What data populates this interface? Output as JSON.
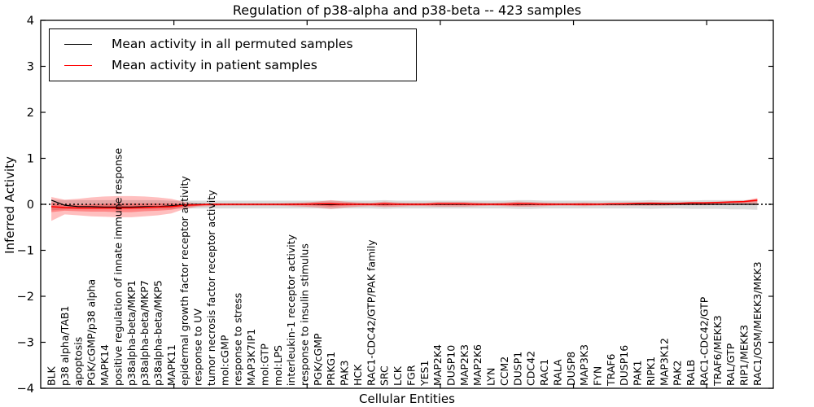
{
  "figure": {
    "title": "Regulation of p38-alpha and p38-beta -- 423 samples",
    "xlabel": "Cellular Entities",
    "ylabel": "Inferred Activity"
  },
  "legend": {
    "items": [
      {
        "label": "Mean activity in all permuted samples",
        "color": "#000000"
      },
      {
        "label": "Mean activity in patient samples",
        "color": "#ff0000"
      }
    ]
  },
  "chart_data": {
    "type": "line",
    "title": "Regulation of p38-alpha and p38-beta -- 423 samples",
    "xlabel": "Cellular Entities",
    "ylabel": "Inferred Activity",
    "ylim": [
      -4,
      4
    ],
    "xlim": [
      0,
      55
    ],
    "grid": false,
    "legend_position": "upper left",
    "y_ticks": [
      4,
      3,
      2,
      1,
      0,
      -1,
      -2,
      -3,
      -4
    ],
    "y_tick_labels": [
      "4",
      "3",
      "2",
      "1",
      "0",
      "−1",
      "−2",
      "−3",
      "−4"
    ],
    "x_major_ticks": [
      10,
      20,
      30,
      40,
      50
    ],
    "zero_line": {
      "style": "dotted",
      "color": "#000000",
      "y": 0
    },
    "categories": [
      "BLK",
      "p38 alpha/TAB1",
      "apoptosis",
      "PGK/cGMP/p38 alpha",
      "MAPK14",
      "positive regulation of innate immune response",
      "p38alpha-beta/MKP1",
      "p38alpha-beta/MKP7",
      "p38alpha-beta/MKP5",
      "MAPK11",
      "epidermal growth factor receptor activity",
      "response to UV",
      "tumor necrosis factor receptor activity",
      "mol:cGMP",
      "response to stress",
      "MAP3K7IP1",
      "mol:GTP",
      "mol:LPS",
      "interleukin-1 receptor activity",
      "response to insulin stimulus",
      "PGK/cGMP",
      "PRKG1",
      "PAK3",
      "HCK",
      "RAC1-CDC42/GTP/PAK family",
      "SRC",
      "LCK",
      "FGR",
      "YES1",
      "MAP2K4",
      "DUSP10",
      "MAP2K3",
      "MAP2K6",
      "LYN",
      "CCM2",
      "DUSP1",
      "CDC42",
      "RAC1",
      "RALA",
      "DUSP8",
      "MAP3K3",
      "FYN",
      "TRAF6",
      "DUSP16",
      "PAK1",
      "RIPK1",
      "MAP3K12",
      "PAK2",
      "RALB",
      "RAC1-CDC42/GTP",
      "TRAF6/MEKK3",
      "RAL/GTP",
      "RIP1/MEKK3",
      "RAC1/OSM/MEKK3/MKK3"
    ],
    "series": [
      {
        "name": "Mean activity in all permuted samples",
        "color": "#000000",
        "values": [
          0.09,
          -0.02,
          -0.05,
          -0.05,
          -0.06,
          -0.06,
          -0.06,
          -0.05,
          -0.05,
          -0.03,
          -0.01,
          0,
          0,
          0,
          0,
          0,
          0,
          0,
          0,
          0,
          0,
          -0.01,
          0,
          0,
          0,
          0,
          0,
          0,
          0,
          0,
          0,
          0,
          0,
          0,
          0,
          0,
          0,
          0,
          0,
          0,
          0,
          0,
          0,
          0,
          0,
          0,
          0,
          0,
          0,
          0,
          0,
          0,
          0,
          0
        ]
      },
      {
        "name": "Mean activity in patient samples",
        "color": "#ff0000",
        "values": [
          -0.05,
          -0.07,
          -0.08,
          -0.08,
          -0.08,
          -0.08,
          -0.08,
          -0.07,
          -0.06,
          -0.05,
          -0.02,
          -0.01,
          0,
          0,
          0,
          0,
          0,
          0,
          0,
          0,
          0.01,
          0.01,
          0,
          0,
          0,
          0.01,
          0,
          0,
          0,
          0.01,
          0.01,
          0.01,
          0,
          0,
          0,
          0.01,
          0.01,
          0,
          0,
          0,
          0,
          0,
          0.01,
          0.01,
          0.02,
          0.02,
          0.02,
          0.02,
          0.03,
          0.03,
          0.04,
          0.05,
          0.06,
          0.09
        ]
      }
    ],
    "bands": [
      {
        "name": "permuted-samples-range",
        "color": "#999999",
        "opacity": 0.35,
        "upper": [
          0.1,
          0.09,
          0.09,
          0.09,
          0.09,
          0.09,
          0.09,
          0.09,
          0.09,
          0.08,
          0.08,
          0.08,
          0.08,
          0.08,
          0.08,
          0.08,
          0.08,
          0.08,
          0.08,
          0.08,
          0.08,
          0.08,
          0.08,
          0.08,
          0.08,
          0.09,
          0.08,
          0.08,
          0.08,
          0.08,
          0.08,
          0.08,
          0.08,
          0.08,
          0.08,
          0.09,
          0.09,
          0.08,
          0.08,
          0.08,
          0.08,
          0.08,
          0.08,
          0.08,
          0.08,
          0.09,
          0.08,
          0.08,
          0.08,
          0.09,
          0.09,
          0.09,
          0.09,
          0.1
        ],
        "lower": [
          -0.13,
          -0.11,
          -0.1,
          -0.1,
          -0.1,
          -0.1,
          -0.1,
          -0.1,
          -0.1,
          -0.1,
          -0.09,
          -0.09,
          -0.09,
          -0.09,
          -0.09,
          -0.09,
          -0.09,
          -0.09,
          -0.09,
          -0.09,
          -0.09,
          -0.1,
          -0.09,
          -0.09,
          -0.09,
          -0.1,
          -0.09,
          -0.09,
          -0.09,
          -0.09,
          -0.09,
          -0.09,
          -0.09,
          -0.09,
          -0.09,
          -0.1,
          -0.1,
          -0.09,
          -0.09,
          -0.09,
          -0.09,
          -0.09,
          -0.09,
          -0.09,
          -0.09,
          -0.1,
          -0.09,
          -0.09,
          -0.1,
          -0.1,
          -0.1,
          -0.11,
          -0.11,
          -0.12
        ]
      },
      {
        "name": "patient-samples-range-outer",
        "color": "#ff0000",
        "opacity": 0.25,
        "upper": [
          0.16,
          0.1,
          0.12,
          0.15,
          0.17,
          0.18,
          0.18,
          0.17,
          0.15,
          0.12,
          0.05,
          0.02,
          0.02,
          0.02,
          0.02,
          0.02,
          0.02,
          0.02,
          0.03,
          0.04,
          0.06,
          0.09,
          0.06,
          0.04,
          0.03,
          0.06,
          0.04,
          0.03,
          0.03,
          0.05,
          0.05,
          0.05,
          0.04,
          0.03,
          0.04,
          0.06,
          0.05,
          0.04,
          0.03,
          0.03,
          0.04,
          0.03,
          0.03,
          0.04,
          0.04,
          0.05,
          0.04,
          0.04,
          0.05,
          0.05,
          0.06,
          0.07,
          0.08,
          0.14
        ],
        "lower": [
          -0.36,
          -0.22,
          -0.24,
          -0.26,
          -0.27,
          -0.28,
          -0.28,
          -0.26,
          -0.24,
          -0.2,
          -0.1,
          -0.05,
          -0.04,
          -0.03,
          -0.03,
          -0.03,
          -0.03,
          -0.03,
          -0.04,
          -0.05,
          -0.07,
          -0.1,
          -0.07,
          -0.05,
          -0.04,
          -0.06,
          -0.05,
          -0.04,
          -0.04,
          -0.05,
          -0.05,
          -0.05,
          -0.04,
          -0.03,
          -0.04,
          -0.05,
          -0.05,
          -0.04,
          -0.03,
          -0.03,
          -0.04,
          -0.03,
          -0.03,
          -0.03,
          -0.03,
          -0.03,
          -0.03,
          -0.02,
          -0.02,
          -0.02,
          -0.01,
          -0.01,
          0.0,
          -0.02
        ]
      },
      {
        "name": "patient-samples-range-inner",
        "color": "#ff0000",
        "opacity": 0.3,
        "upper": [
          0.03,
          0.0,
          -0.01,
          0.0,
          0.01,
          0.02,
          0.02,
          0.02,
          0.02,
          0.02,
          0.01,
          0.0,
          0.01,
          0.01,
          0.01,
          0.01,
          0.01,
          0.01,
          0.01,
          0.02,
          0.03,
          0.04,
          0.03,
          0.02,
          0.01,
          0.03,
          0.02,
          0.01,
          0.01,
          0.02,
          0.02,
          0.02,
          0.02,
          0.01,
          0.02,
          0.03,
          0.02,
          0.02,
          0.01,
          0.01,
          0.02,
          0.01,
          0.01,
          0.02,
          0.03,
          0.03,
          0.03,
          0.03,
          0.04,
          0.04,
          0.05,
          0.06,
          0.07,
          0.11
        ],
        "lower": [
          -0.17,
          -0.14,
          -0.15,
          -0.16,
          -0.16,
          -0.17,
          -0.17,
          -0.15,
          -0.14,
          -0.12,
          -0.06,
          -0.03,
          -0.02,
          -0.01,
          -0.01,
          -0.01,
          -0.01,
          -0.01,
          -0.02,
          -0.02,
          -0.03,
          -0.05,
          -0.03,
          -0.02,
          -0.02,
          -0.03,
          -0.02,
          -0.02,
          -0.02,
          -0.02,
          -0.02,
          -0.02,
          -0.02,
          -0.01,
          -0.02,
          -0.03,
          -0.02,
          -0.02,
          -0.01,
          -0.01,
          -0.02,
          -0.01,
          -0.01,
          -0.01,
          0.0,
          0.0,
          0.0,
          0.01,
          0.01,
          0.01,
          0.02,
          0.03,
          0.04,
          0.06
        ]
      }
    ]
  }
}
